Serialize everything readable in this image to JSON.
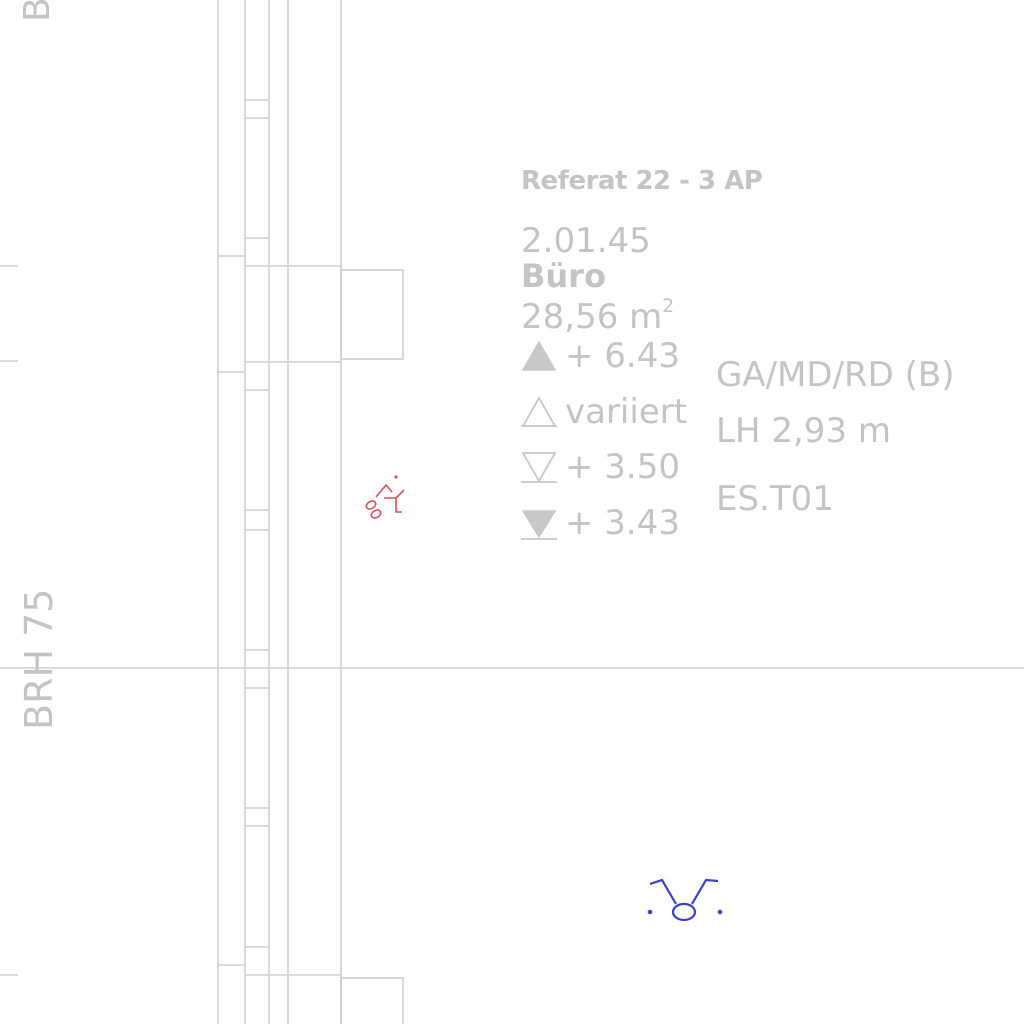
{
  "room": {
    "department": "Referat 22 -  3 AP",
    "number": "2.01.45",
    "name": "Büro",
    "area_value": "28,56 m",
    "area_exp": "2"
  },
  "elevations": [
    {
      "icon": "elevation-triangle-filled-up-icon",
      "text": "+ 6.43"
    },
    {
      "icon": "elevation-triangle-outline-up-icon",
      "text": "variiert"
    },
    {
      "icon": "elevation-triangle-outline-down-icon",
      "text": "+ 3.50"
    },
    {
      "icon": "elevation-triangle-filled-down-icon",
      "text": "+ 3.43"
    }
  ],
  "room_info": {
    "code": "GA/MD/RD (B)",
    "clear_height": "LH 2,93 m",
    "finish": "ES.T01"
  },
  "sill_height_label": "BRH 75",
  "top_edge_label": "B",
  "colors": {
    "line": "#cfcfcf",
    "text": "#c4c4c4",
    "sensor_red": "#e0505a",
    "fixture_blue": "#3a3fd8"
  }
}
